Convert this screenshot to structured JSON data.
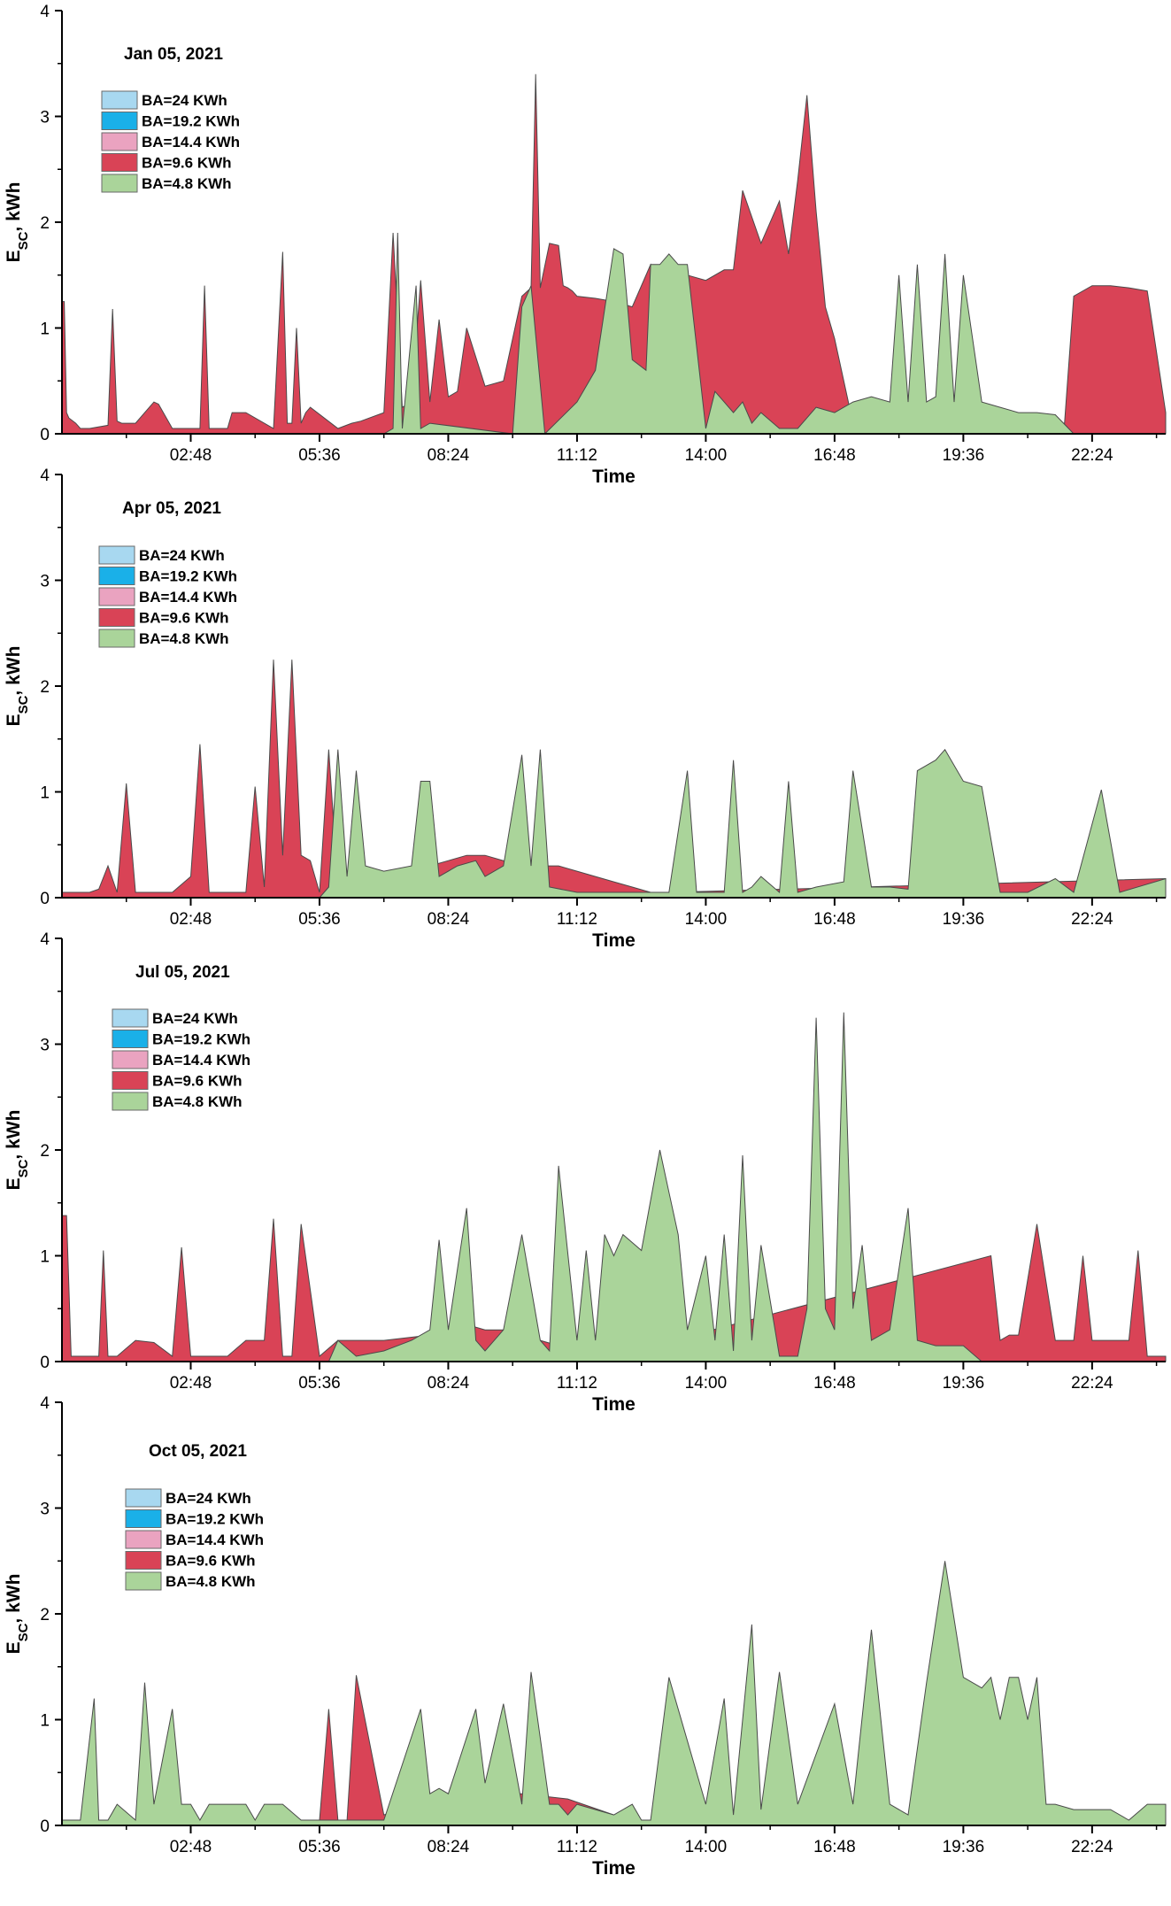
{
  "figure": {
    "x_tick_labels": [
      "02:48",
      "05:36",
      "08:24",
      "11:12",
      "14:00",
      "16:48",
      "19:36",
      "22:24"
    ],
    "y_tick_labels": [
      "0",
      "1",
      "2",
      "3",
      "4"
    ]
  },
  "legend": {
    "items": [
      {
        "label": "BA=24 KWh",
        "color": "#a8d8f0"
      },
      {
        "label": "BA=19.2 KWh",
        "color": "#1ab0e8"
      },
      {
        "label": "BA=14.4 KWh",
        "color": "#eaa3c0"
      },
      {
        "label": "BA=9.6 KWh",
        "color": "#d94356"
      },
      {
        "label": "BA=4.8 KWh",
        "color": "#aad49a"
      }
    ]
  },
  "chart_data": [
    {
      "type": "area",
      "title": "Jan 05, 2021",
      "xlabel": "Time",
      "ylabel": "E_SC, kWh",
      "ylim": [
        0,
        4
      ],
      "xlim_hours": [
        0,
        24
      ],
      "series": [
        {
          "name": "BA=9.6 KWh",
          "color": "#d94356",
          "x": [
            0,
            0.05,
            0.1,
            0.15,
            0.3,
            0.4,
            0.6,
            1.0,
            1.1,
            1.2,
            1.3,
            1.6,
            2.0,
            2.1,
            2.4,
            3.0,
            3.1,
            3.2,
            3.3,
            3.6,
            3.7,
            4.0,
            4.6,
            4.8,
            4.9,
            5.0,
            5.1,
            5.2,
            5.3,
            5.4,
            6.0,
            6.3,
            6.5,
            7.0,
            7.2,
            7.4,
            7.6,
            7.8,
            8.0,
            8.2,
            8.4,
            8.6,
            8.8,
            9.2,
            9.6,
            10.0,
            10.2,
            10.3,
            10.4,
            10.6,
            10.8,
            10.9,
            11.0,
            11.1,
            11.2,
            11.6,
            12.0,
            12.4,
            12.8,
            13.2,
            13.6,
            14.0,
            14.4,
            14.6,
            14.8,
            15.2,
            15.6,
            15.8,
            16.0,
            16.2,
            16.4,
            16.6,
            16.8,
            17.2,
            17.6,
            18.0,
            18.8,
            19.6,
            20.2,
            21.0,
            21.8,
            22.0,
            22.4,
            22.8,
            23.2,
            23.6,
            24.0
          ],
          "y": [
            1.25,
            1.25,
            0.2,
            0.15,
            0.1,
            0.05,
            0.05,
            0.08,
            1.18,
            0.12,
            0.1,
            0.1,
            0.3,
            0.28,
            0.05,
            0.05,
            1.4,
            0.05,
            0.05,
            0.05,
            0.2,
            0.2,
            0.05,
            1.72,
            0.1,
            0.1,
            1.0,
            0.1,
            0.2,
            0.25,
            0.05,
            0.1,
            0.12,
            0.2,
            1.9,
            0.25,
            0.3,
            1.45,
            0.3,
            1.08,
            0.35,
            0.4,
            1.0,
            0.45,
            0.5,
            1.3,
            1.38,
            3.4,
            1.38,
            1.8,
            1.78,
            1.4,
            1.38,
            1.35,
            1.3,
            1.28,
            1.25,
            1.2,
            1.6,
            1.2,
            1.5,
            1.45,
            1.55,
            1.55,
            2.3,
            1.8,
            2.2,
            1.7,
            2.4,
            3.2,
            2.1,
            1.2,
            0.9,
            0.1,
            0.1,
            0.05,
            0.05,
            0.05,
            0.05,
            0.1,
            0.1,
            1.3,
            1.4,
            1.4,
            1.38,
            1.35,
            0.2
          ]
        },
        {
          "name": "BA=4.8 KWh",
          "color": "#aad49a",
          "x": [
            0,
            7.0,
            7.2,
            7.3,
            7.4,
            7.7,
            7.8,
            8.0,
            9.8,
            10.0,
            10.2,
            10.5,
            11.2,
            11.6,
            12.0,
            12.2,
            12.4,
            12.7,
            12.8,
            13.0,
            13.2,
            13.4,
            13.6,
            14.0,
            14.2,
            14.4,
            14.6,
            14.8,
            15.0,
            15.2,
            15.6,
            16.0,
            16.4,
            16.8,
            17.2,
            17.6,
            18.0,
            18.2,
            18.4,
            18.6,
            18.8,
            19.0,
            19.2,
            19.4,
            19.6,
            20.0,
            20.4,
            20.8,
            21.2,
            21.6,
            22.0,
            22.4,
            23.0,
            24.0
          ],
          "y": [
            0,
            0,
            0.05,
            1.9,
            0.05,
            1.4,
            0.05,
            0.1,
            0,
            1.2,
            1.4,
            0,
            0.3,
            0.6,
            1.75,
            1.7,
            0.7,
            0.6,
            1.6,
            1.6,
            1.7,
            1.6,
            1.6,
            0.05,
            0.4,
            0.3,
            0.2,
            0.3,
            0.1,
            0.2,
            0.05,
            0.05,
            0.25,
            0.2,
            0.3,
            0.35,
            0.3,
            1.5,
            0.3,
            1.6,
            0.3,
            0.35,
            1.7,
            0.3,
            1.5,
            0.3,
            0.25,
            0.2,
            0.2,
            0.18,
            0,
            0,
            0,
            0
          ]
        }
      ]
    },
    {
      "type": "area",
      "title": "Apr 05, 2021",
      "xlabel": "Time",
      "ylabel": "E_SC, kWh",
      "ylim": [
        0,
        4
      ],
      "xlim_hours": [
        0,
        24
      ],
      "series": [
        {
          "name": "BA=9.6 KWh",
          "color": "#d94356",
          "x": [
            0,
            0.3,
            0.6,
            0.8,
            1.0,
            1.2,
            1.4,
            1.6,
            2.0,
            2.4,
            2.8,
            3.0,
            3.2,
            3.6,
            4.0,
            4.2,
            4.4,
            4.6,
            4.8,
            5.0,
            5.2,
            5.4,
            5.6,
            5.8,
            6.0,
            6.2,
            6.6,
            7.0,
            7.6,
            8.0,
            8.4,
            8.8,
            9.2,
            9.6,
            10.0,
            10.4,
            10.8,
            11.2,
            11.6,
            12.0,
            12.4,
            12.8,
            13.2,
            24.0
          ],
          "y": [
            0.05,
            0.05,
            0.05,
            0.08,
            0.3,
            0.05,
            1.08,
            0.05,
            0.05,
            0.05,
            0.2,
            1.45,
            0.05,
            0.05,
            0.05,
            1.05,
            0.1,
            2.25,
            0.4,
            2.25,
            0.4,
            0.35,
            0.05,
            1.4,
            0.1,
            0.1,
            0.15,
            0.2,
            0.25,
            0.3,
            0.35,
            0.4,
            0.4,
            0.35,
            0.35,
            0.3,
            0.3,
            0.25,
            0.2,
            0.15,
            0.1,
            0.05,
            0.05,
            0.18
          ]
        },
        {
          "name": "BA=4.8 KWh",
          "color": "#aad49a",
          "x": [
            0,
            5.6,
            5.8,
            6.0,
            6.2,
            6.4,
            6.6,
            7.0,
            7.6,
            7.8,
            8.0,
            8.2,
            8.6,
            9.0,
            9.2,
            9.6,
            10.0,
            10.2,
            10.4,
            10.6,
            11.2,
            11.4,
            12.0,
            13.2,
            13.6,
            13.8,
            14.0,
            14.4,
            14.6,
            14.8,
            15.0,
            15.2,
            15.6,
            15.8,
            16.0,
            16.4,
            17.0,
            17.2,
            17.6,
            18.0,
            18.4,
            18.6,
            19.0,
            19.2,
            19.6,
            20.0,
            20.4,
            21.0,
            21.6,
            22.0,
            22.6,
            23.0,
            24.0
          ],
          "y": [
            0,
            0,
            0.1,
            1.4,
            0.2,
            1.2,
            0.3,
            0.25,
            0.3,
            1.1,
            1.1,
            0.2,
            0.3,
            0.35,
            0.2,
            0.3,
            1.35,
            0.3,
            1.4,
            0.1,
            0.05,
            0.05,
            0.05,
            0.05,
            1.2,
            0.05,
            0.05,
            0.05,
            1.3,
            0.05,
            0.1,
            0.2,
            0.05,
            1.1,
            0.05,
            0.1,
            0.15,
            1.2,
            0.1,
            0.1,
            0.08,
            1.2,
            1.3,
            1.4,
            1.1,
            1.05,
            0.05,
            0.05,
            0.18,
            0.05,
            1.02,
            0.05,
            0.18
          ]
        }
      ]
    },
    {
      "type": "area",
      "title": "Jul 05, 2021",
      "xlabel": "Time",
      "ylabel": "E_SC, kWh",
      "ylim": [
        0,
        4
      ],
      "xlim_hours": [
        0,
        24
      ],
      "series": [
        {
          "name": "BA=9.6 KWh",
          "color": "#d94356",
          "x": [
            0,
            0.1,
            0.2,
            0.4,
            0.8,
            0.9,
            1.0,
            1.2,
            1.6,
            2.0,
            2.4,
            2.6,
            2.8,
            3.2,
            3.6,
            4.0,
            4.4,
            4.6,
            4.8,
            5.0,
            5.2,
            5.6,
            6.0,
            7.0,
            8.0,
            8.4,
            8.8,
            9.2,
            9.6,
            10.0,
            10.4,
            10.8,
            11.2,
            12.0,
            20.2,
            20.4,
            20.6,
            20.8,
            21.2,
            21.6,
            22.0,
            22.2,
            22.4,
            22.8,
            23.2,
            23.4,
            23.6,
            24.0
          ],
          "y": [
            1.38,
            1.38,
            0.05,
            0.05,
            0.05,
            1.05,
            0.05,
            0.05,
            0.2,
            0.18,
            0.05,
            1.08,
            0.05,
            0.05,
            0.05,
            0.2,
            0.2,
            1.35,
            0.05,
            0.05,
            1.3,
            0.05,
            0.2,
            0.2,
            0.25,
            0.3,
            0.35,
            0.3,
            0.3,
            0.25,
            0.2,
            0.15,
            0.1,
            0.05,
            1.0,
            0.2,
            0.25,
            0.25,
            1.3,
            0.2,
            0.2,
            1.0,
            0.2,
            0.2,
            0.2,
            1.05,
            0.05,
            0.05
          ]
        },
        {
          "name": "BA=4.8 KWh",
          "color": "#aad49a",
          "x": [
            0,
            5.8,
            6.0,
            6.4,
            7.0,
            7.6,
            8.0,
            8.2,
            8.4,
            8.8,
            9.0,
            9.2,
            9.6,
            10.0,
            10.4,
            10.6,
            10.8,
            11.2,
            11.4,
            11.6,
            11.8,
            12.0,
            12.2,
            12.6,
            13.0,
            13.2,
            13.4,
            13.6,
            14.0,
            14.2,
            14.4,
            14.6,
            14.8,
            15.0,
            15.2,
            15.6,
            16.0,
            16.2,
            16.4,
            16.6,
            16.8,
            17.0,
            17.2,
            17.4,
            17.6,
            18.0,
            18.4,
            18.6,
            19.0,
            19.4,
            19.6,
            20.0,
            20.2,
            24.0
          ],
          "y": [
            0,
            0,
            0.2,
            0.05,
            0.1,
            0.2,
            0.3,
            1.15,
            0.3,
            1.45,
            0.2,
            0.1,
            0.3,
            1.2,
            0.2,
            0.1,
            1.85,
            0.2,
            1.05,
            0.2,
            1.2,
            1.0,
            1.2,
            1.05,
            2.0,
            1.6,
            1.2,
            0.3,
            1.0,
            0.2,
            1.2,
            0.1,
            1.95,
            0.2,
            1.1,
            0.05,
            0.05,
            0.5,
            3.25,
            0.5,
            0.3,
            3.3,
            0.5,
            1.1,
            0.2,
            0.3,
            1.45,
            0.2,
            0.15,
            0.15,
            0.15,
            0,
            0,
            0
          ]
        }
      ]
    },
    {
      "type": "area",
      "title": "Oct 05, 2021",
      "xlabel": "Time",
      "ylabel": "E_SC, kWh",
      "ylim": [
        0,
        4
      ],
      "xlim_hours": [
        0,
        24
      ],
      "series": [
        {
          "name": "BA=9.6 KWh",
          "color": "#d94356",
          "x": [
            0,
            5.4,
            5.6,
            5.8,
            6.0,
            6.2,
            6.4,
            7.0,
            8.0,
            9.0,
            10.0,
            11.0,
            12.0,
            12.6,
            24.0
          ],
          "y": [
            0,
            0,
            0.05,
            1.1,
            0.05,
            0.05,
            1.42,
            0.1,
            0.25,
            0.3,
            0.3,
            0.25,
            0.1,
            0,
            0
          ]
        },
        {
          "name": "BA=4.8 KWh",
          "color": "#aad49a",
          "x": [
            0,
            0.4,
            0.7,
            0.8,
            1.0,
            1.2,
            1.6,
            1.8,
            2.0,
            2.4,
            2.6,
            2.8,
            3.0,
            3.2,
            4.0,
            4.2,
            4.4,
            4.8,
            5.2,
            5.6,
            6.0,
            6.6,
            7.0,
            7.8,
            8.0,
            8.2,
            8.4,
            9.0,
            9.2,
            9.6,
            10.0,
            10.2,
            10.6,
            10.8,
            11.0,
            11.2,
            11.6,
            12.0,
            12.4,
            12.6,
            12.8,
            13.2,
            14.0,
            14.4,
            14.6,
            15.0,
            15.2,
            15.6,
            16.0,
            16.8,
            17.2,
            17.6,
            18.0,
            18.4,
            18.8,
            19.2,
            19.6,
            20.0,
            20.2,
            20.4,
            20.6,
            20.8,
            21.0,
            21.2,
            21.4,
            21.6,
            22.0,
            22.4,
            22.8,
            23.2,
            23.6,
            24.0
          ],
          "y": [
            0.05,
            0.05,
            1.2,
            0.05,
            0.05,
            0.2,
            0.05,
            1.35,
            0.2,
            1.1,
            0.2,
            0.2,
            0.05,
            0.2,
            0.2,
            0.05,
            0.2,
            0.2,
            0.05,
            0.05,
            0.05,
            0.05,
            0.05,
            1.1,
            0.3,
            0.35,
            0.3,
            1.1,
            0.4,
            1.15,
            0.2,
            1.45,
            0.2,
            0.2,
            0.1,
            0.2,
            0.15,
            0.1,
            0.2,
            0.05,
            0.05,
            1.4,
            0.2,
            1.2,
            0.1,
            1.9,
            0.15,
            1.45,
            0.2,
            1.15,
            0.2,
            1.85,
            0.2,
            0.1,
            1.35,
            2.5,
            1.4,
            1.3,
            1.4,
            1.0,
            1.4,
            1.4,
            1.0,
            1.4,
            0.2,
            0.2,
            0.15,
            0.15,
            0.15,
            0.05,
            0.2,
            0.2
          ]
        }
      ]
    }
  ]
}
